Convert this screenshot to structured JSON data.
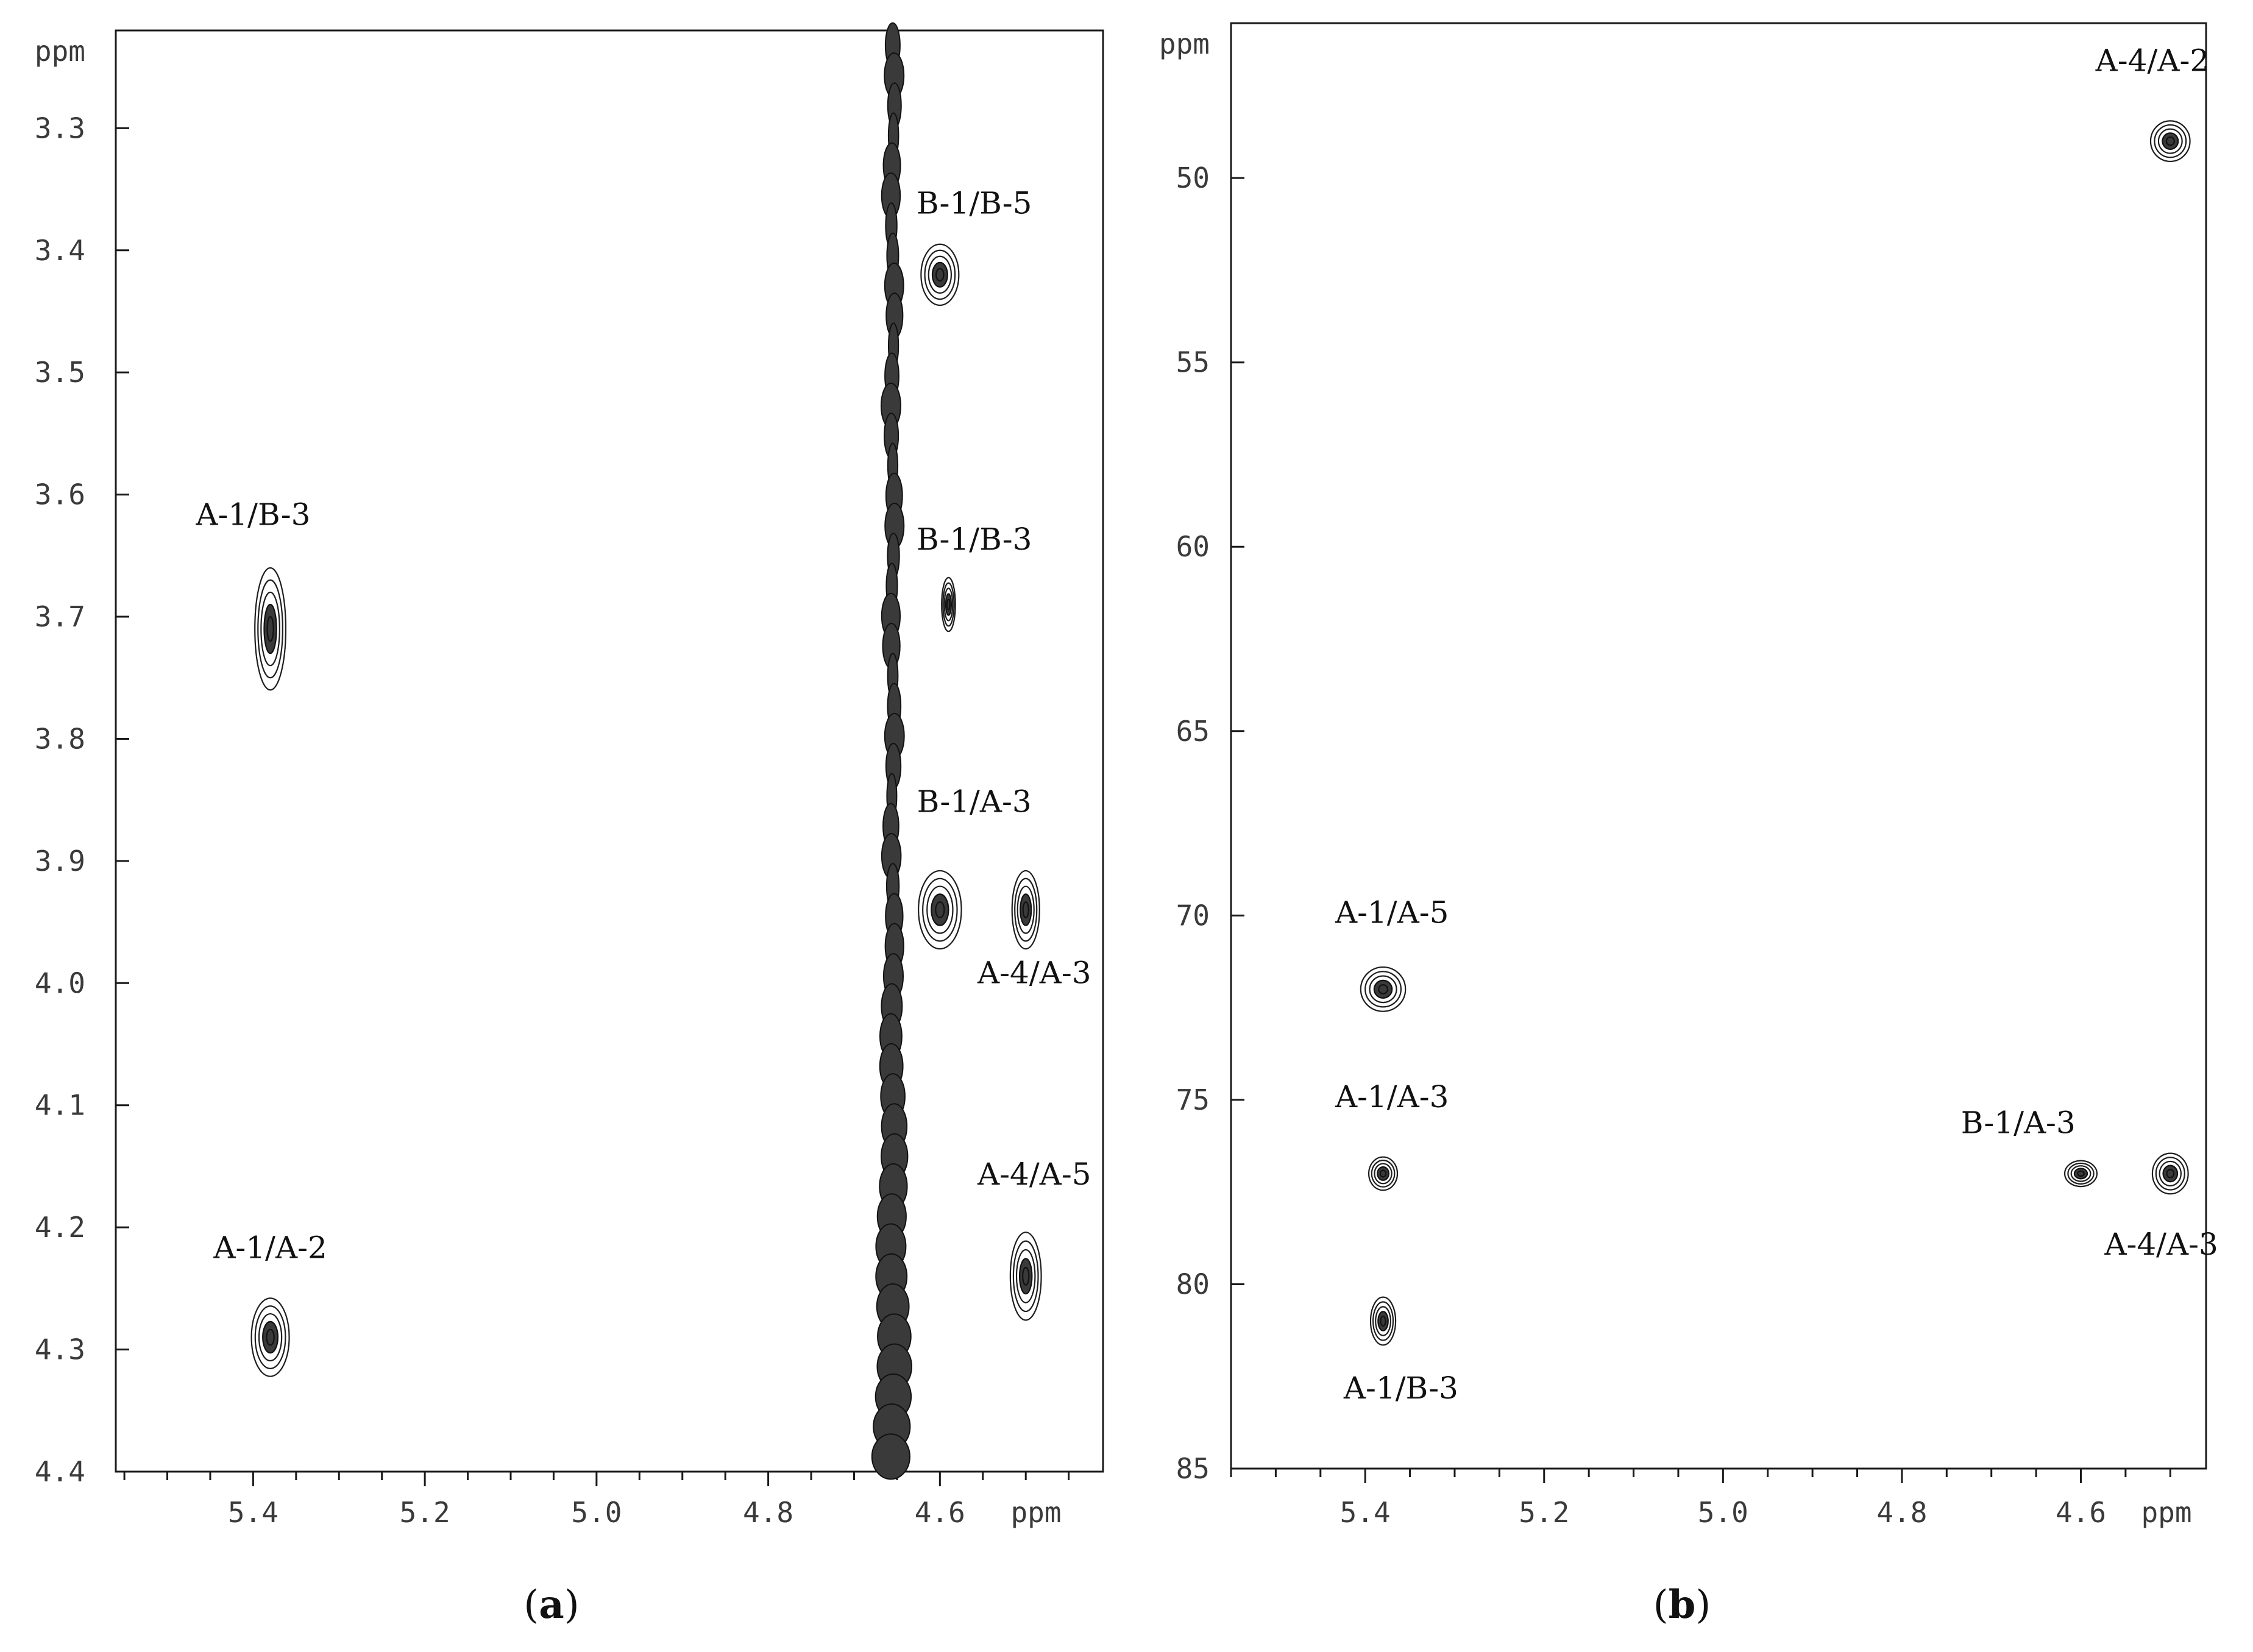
{
  "chart_data": [
    {
      "type": "scatter",
      "panel": "(a)",
      "panel_letter": "a",
      "title": "",
      "xlabel": "ppm",
      "ylabel": "ppm",
      "xlim": [
        5.56,
        4.41
      ],
      "ylim": [
        3.22,
        4.4
      ],
      "x_ticks": [
        "5.4",
        "5.2",
        "5.0",
        "4.8",
        "4.6"
      ],
      "x_tick_values": [
        5.4,
        5.2,
        5.0,
        4.8,
        4.6
      ],
      "y_ticks": [
        "3.3",
        "3.4",
        "3.5",
        "3.6",
        "3.7",
        "3.8",
        "3.9",
        "4.0",
        "4.1",
        "4.2",
        "4.3",
        "4.4"
      ],
      "y_tick_values": [
        3.3,
        3.4,
        3.5,
        3.6,
        3.7,
        3.8,
        3.9,
        4.0,
        4.1,
        4.2,
        4.3,
        4.4
      ],
      "diagonal_ridge": {
        "x": 4.655,
        "y_from": 3.22,
        "y_to": 4.4
      },
      "peaks": [
        {
          "label": "A-1/B-3",
          "x": 5.38,
          "y": 3.71,
          "rx": 0.018,
          "ry": 0.05
        },
        {
          "label": "A-1/A-2",
          "x": 5.38,
          "y": 4.29,
          "rx": 0.022,
          "ry": 0.032
        },
        {
          "label": "B-1/B-5",
          "x": 4.6,
          "y": 3.42,
          "rx": 0.022,
          "ry": 0.025
        },
        {
          "label": "B-1/B-3",
          "x": 4.59,
          "y": 3.69,
          "rx": 0.008,
          "ry": 0.022
        },
        {
          "label": "B-1/A-3",
          "x": 4.6,
          "y": 3.94,
          "rx": 0.025,
          "ry": 0.032
        },
        {
          "label": "A-4/A-3",
          "x": 4.5,
          "y": 3.94,
          "rx": 0.016,
          "ry": 0.032
        },
        {
          "label": "A-4/A-5",
          "x": 4.5,
          "y": 4.24,
          "rx": 0.018,
          "ry": 0.036
        }
      ],
      "label_positions": [
        {
          "label": "A-1/B-3",
          "x": 5.4,
          "y": 3.625
        },
        {
          "label": "A-1/A-2",
          "x": 5.38,
          "y": 4.225
        },
        {
          "label": "B-1/B-5",
          "x": 4.56,
          "y": 3.37
        },
        {
          "label": "B-1/B-3",
          "x": 4.56,
          "y": 3.645
        },
        {
          "label": "B-1/A-3",
          "x": 4.56,
          "y": 3.86
        },
        {
          "label": "A-4/A-3",
          "x": 4.49,
          "y": 4.0
        },
        {
          "label": "A-4/A-5",
          "x": 4.49,
          "y": 4.165
        }
      ]
    },
    {
      "type": "scatter",
      "panel": "(b)",
      "panel_letter": "b",
      "title": "",
      "xlabel": "ppm",
      "ylabel": "ppm",
      "xlim": [
        5.55,
        4.46
      ],
      "ylim": [
        45.8,
        85.0
      ],
      "x_ticks": [
        "5.4",
        "5.2",
        "5.0",
        "4.8",
        "4.6"
      ],
      "x_tick_values": [
        5.4,
        5.2,
        5.0,
        4.8,
        4.6
      ],
      "y_ticks": [
        "50",
        "55",
        "60",
        "65",
        "70",
        "75",
        "80",
        "85"
      ],
      "y_tick_values": [
        50,
        55,
        60,
        65,
        70,
        75,
        80,
        85
      ],
      "peaks": [
        {
          "label": "A-4/A-2",
          "x": 4.5,
          "y": 49.0,
          "rx": 0.022,
          "ry": 0.55
        },
        {
          "label": "A-1/A-5",
          "x": 5.38,
          "y": 72.0,
          "rx": 0.025,
          "ry": 0.6
        },
        {
          "label": "A-1/A-3",
          "x": 5.38,
          "y": 77.0,
          "rx": 0.016,
          "ry": 0.45
        },
        {
          "label": "A-1/B-3",
          "x": 5.38,
          "y": 81.0,
          "rx": 0.014,
          "ry": 0.65
        },
        {
          "label": "B-1/A-3",
          "x": 4.6,
          "y": 77.0,
          "rx": 0.018,
          "ry": 0.35
        },
        {
          "label": "A-4/A-3",
          "x": 4.5,
          "y": 77.0,
          "rx": 0.02,
          "ry": 0.55
        }
      ],
      "label_positions": [
        {
          "label": "A-4/A-2",
          "x": 4.52,
          "y": 47.1
        },
        {
          "label": "A-1/A-5",
          "x": 5.37,
          "y": 70.2
        },
        {
          "label": "A-1/A-3",
          "x": 5.37,
          "y": 75.2
        },
        {
          "label": "A-1/B-3",
          "x": 5.36,
          "y": 83.1
        },
        {
          "label": "B-1/A-3",
          "x": 4.67,
          "y": 75.9
        },
        {
          "label": "A-4/A-3",
          "x": 4.51,
          "y": 79.2
        }
      ]
    }
  ]
}
